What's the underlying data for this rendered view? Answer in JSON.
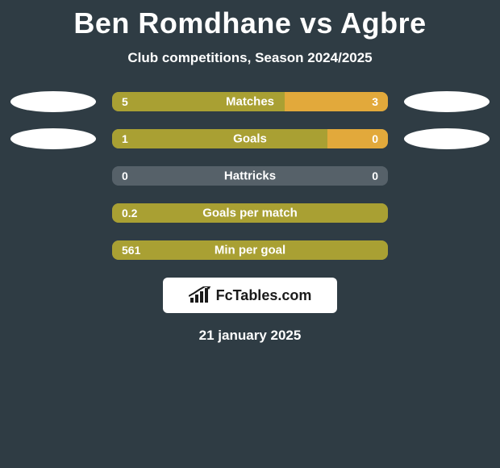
{
  "background_color": "#2f3c44",
  "text_color": "#ffffff",
  "title": "Ben Romdhane vs Agbre",
  "title_fontsize": 36,
  "subtitle": "Club competitions, Season 2024/2025",
  "subtitle_fontsize": 17,
  "player1_color": "#a9a033",
  "player2_color": "#e2a93b",
  "bar_shell_color": "#566169",
  "oval_color": "#ffffff",
  "stats": [
    {
      "label": "Matches",
      "left_value": "5",
      "right_value": "3",
      "left_pct": 62.5,
      "right_pct": 37.5,
      "show_ovals": true
    },
    {
      "label": "Goals",
      "left_value": "1",
      "right_value": "0",
      "left_pct": 78,
      "right_pct": 22,
      "show_ovals": true
    },
    {
      "label": "Hattricks",
      "left_value": "0",
      "right_value": "0",
      "left_pct": 0,
      "right_pct": 0,
      "show_ovals": false
    },
    {
      "label": "Goals per match",
      "left_value": "0.2",
      "right_value": "",
      "left_pct": 100,
      "right_pct": 0,
      "show_ovals": false
    },
    {
      "label": "Min per goal",
      "left_value": "561",
      "right_value": "",
      "left_pct": 100,
      "right_pct": 0,
      "show_ovals": false
    }
  ],
  "logo": {
    "box_bg": "#ffffff",
    "text": "FcTables.com",
    "text_color": "#1a1a1a",
    "icon_color": "#1a1a1a"
  },
  "date": "21 january 2025"
}
